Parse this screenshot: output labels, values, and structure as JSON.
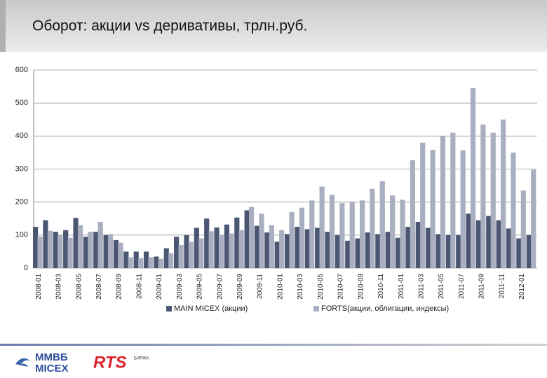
{
  "chart_data": {
    "type": "bar",
    "title": "Оборот: акции vs деривативы, трлн.руб.",
    "categories": [
      "2008-01",
      null,
      "2008-03",
      null,
      "2008-05",
      null,
      "2008-07",
      null,
      "2008-09",
      null,
      "2008-11",
      null,
      "2009-01",
      null,
      "2009-03",
      null,
      "2009-05",
      null,
      "2009-07",
      null,
      "2009-09",
      null,
      "2009-11",
      null,
      "2010-01",
      null,
      "2010-03",
      null,
      "2010-05",
      null,
      "2010-07",
      null,
      "2010-09",
      null,
      "2010-11",
      null,
      "2011-01",
      null,
      "2011-03",
      null,
      "2011-05",
      null,
      "2011-07",
      null,
      "2011-09",
      null,
      "2011-11",
      null,
      "2012-01",
      null
    ],
    "series": [
      {
        "name": "MAIN MICEX (акции)",
        "color": "#4b5772",
        "values": [
          125,
          145,
          110,
          115,
          152,
          95,
          110,
          100,
          85,
          50,
          50,
          50,
          35,
          60,
          95,
          100,
          122,
          150,
          123,
          132,
          153,
          175,
          128,
          108,
          80,
          103,
          125,
          118,
          122,
          110,
          100,
          83,
          90,
          108,
          103,
          110,
          92,
          125,
          140,
          122,
          103,
          100,
          100,
          165,
          145,
          158,
          145,
          120,
          90,
          100
        ]
      },
      {
        "name": "FORTS(акции, облигации, индексы)",
        "color": "#a9afc0",
        "values": [
          95,
          113,
          100,
          92,
          130,
          110,
          140,
          103,
          77,
          33,
          30,
          33,
          28,
          45,
          70,
          80,
          90,
          112,
          100,
          105,
          115,
          185,
          165,
          130,
          115,
          170,
          183,
          205,
          247,
          222,
          197,
          200,
          205,
          240,
          263,
          220,
          207,
          327,
          380,
          358,
          400,
          410,
          357,
          545,
          435,
          410,
          450,
          350,
          235,
          298
        ]
      }
    ],
    "ylim": [
      0,
      600
    ],
    "yticks": [
      0,
      100,
      200,
      300,
      400,
      500,
      600
    ],
    "grid": true,
    "legend": "bottom"
  },
  "footer": {
    "micex_ru": "ММВБ",
    "micex_en": "MICEX",
    "rts": "RTS",
    "rts_sub": "БИРЖА"
  }
}
